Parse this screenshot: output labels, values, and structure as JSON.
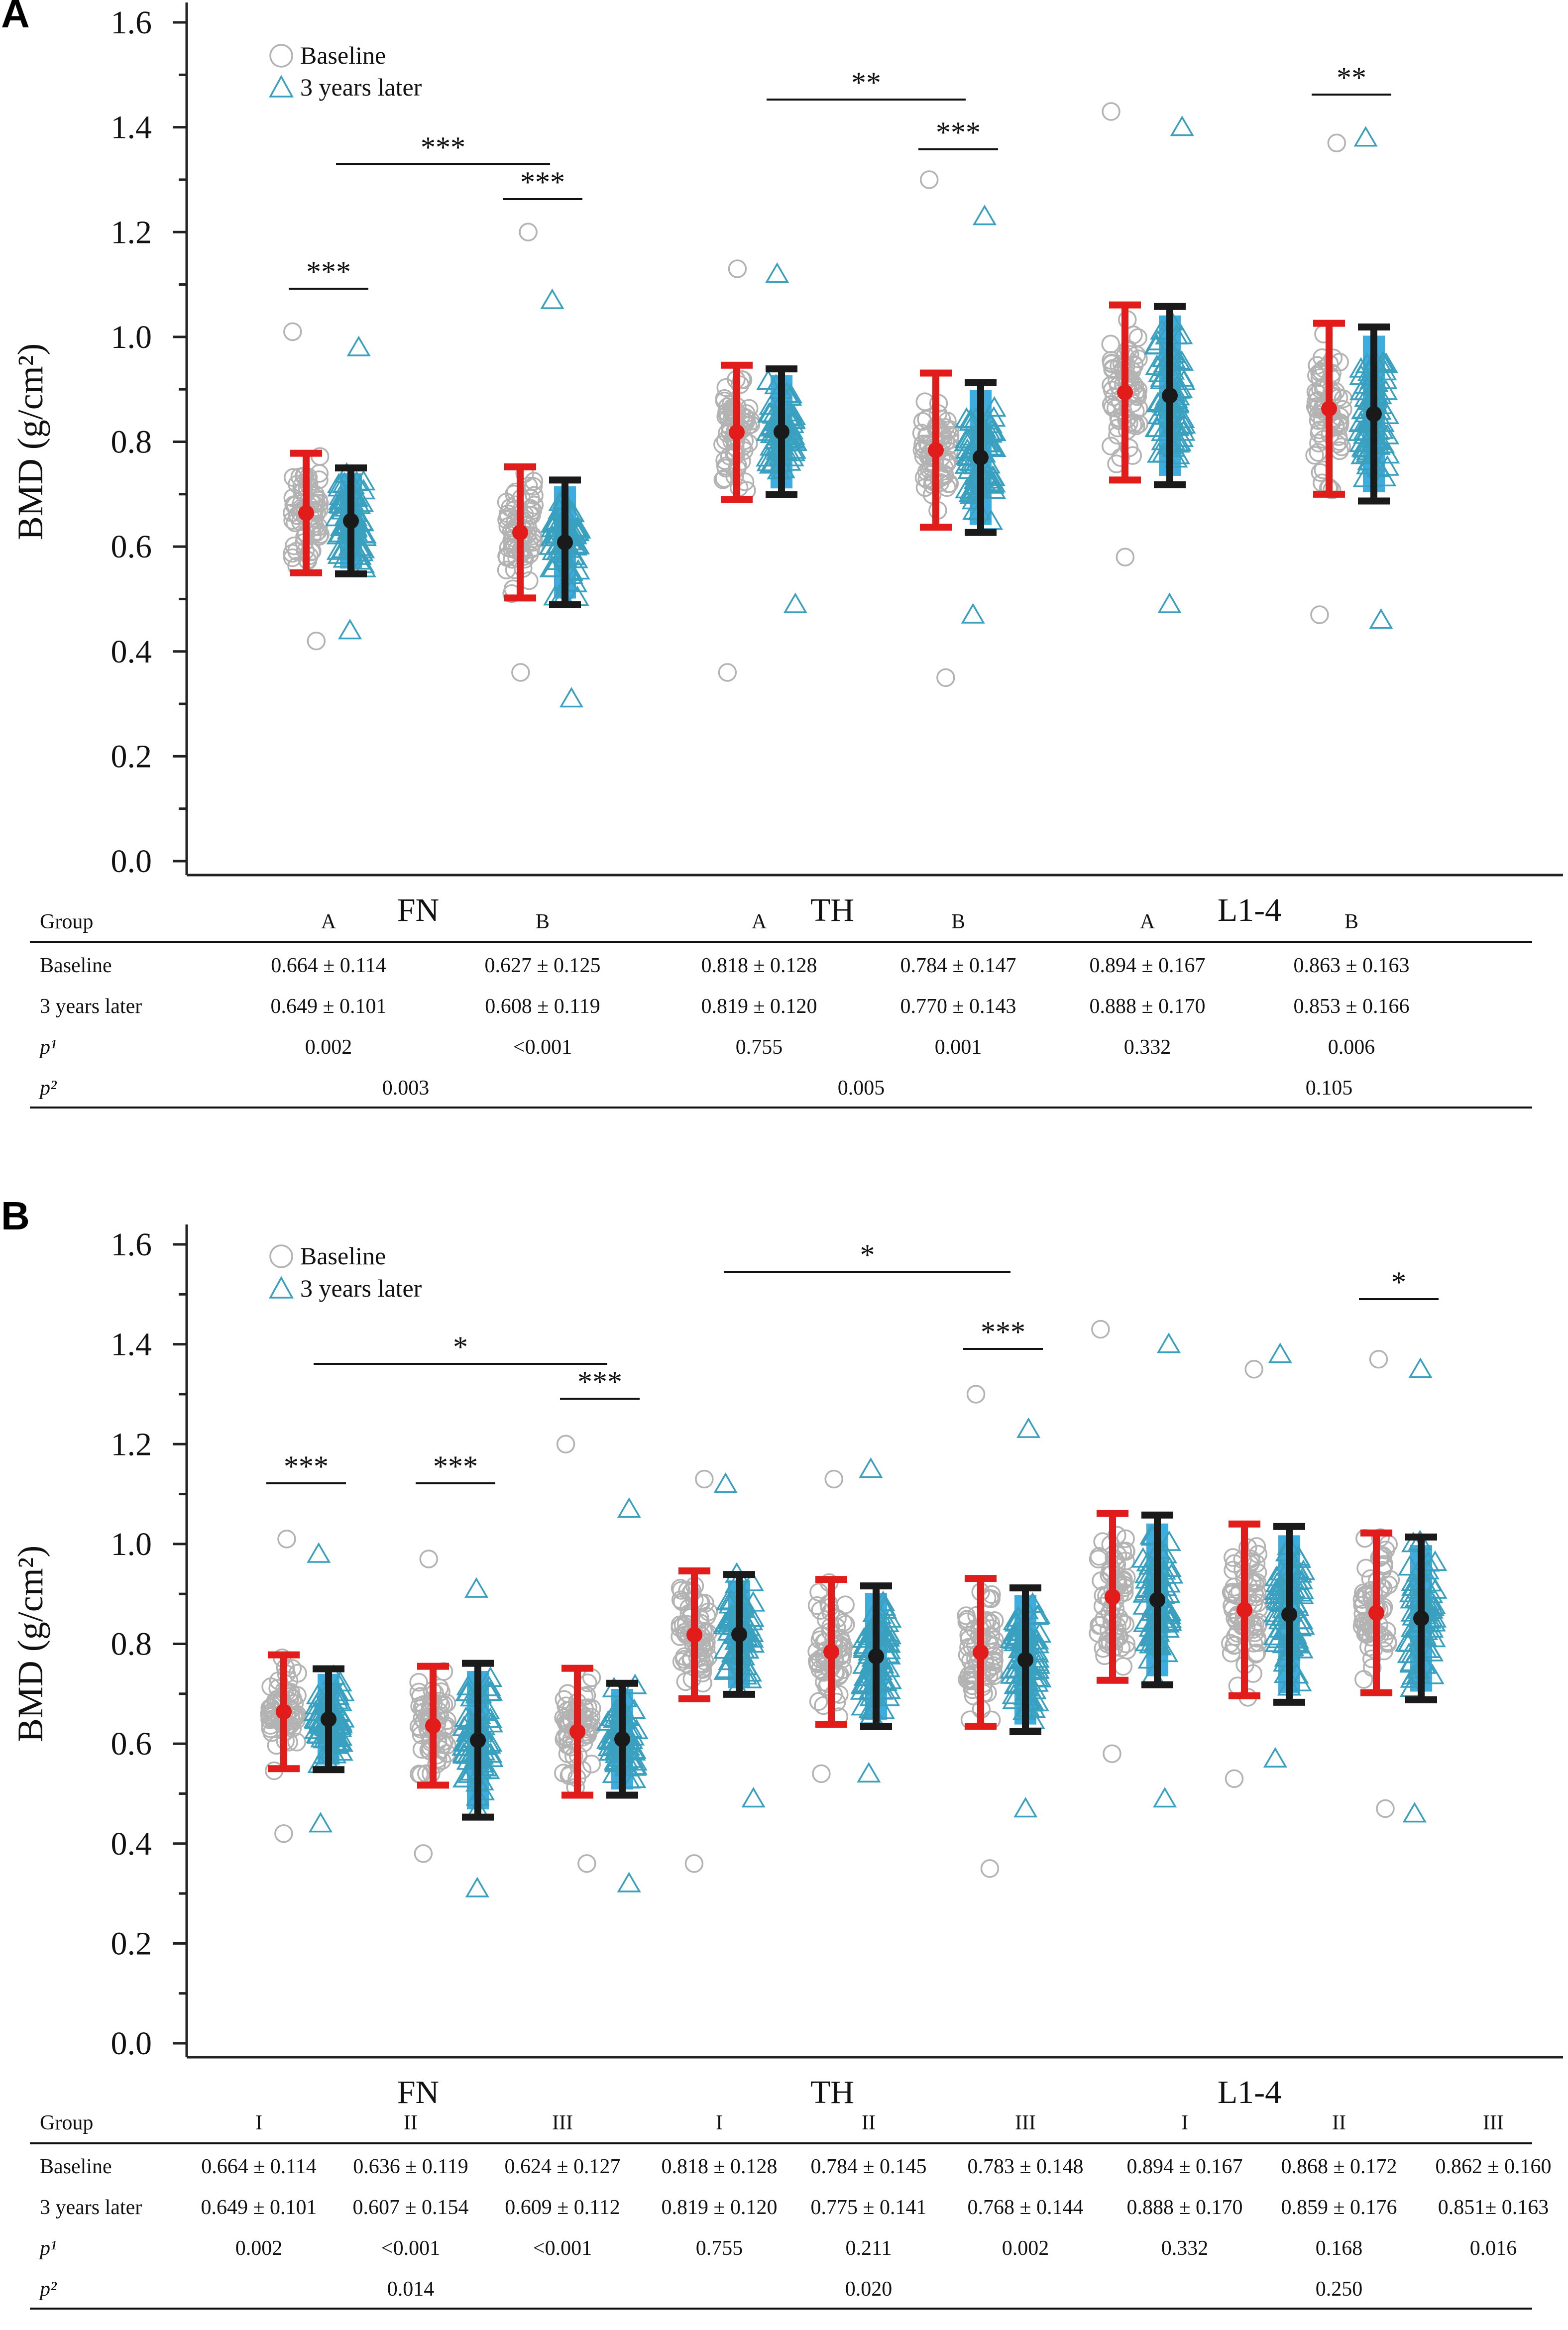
{
  "chart_data": [
    {
      "id": "A",
      "panel_label": "A",
      "type": "scatter",
      "ylabel": "BMD (g/cm²)",
      "ylim": [
        0,
        1.6
      ],
      "yticks": [
        0.0,
        0.2,
        0.4,
        0.6,
        0.8,
        1.0,
        1.2,
        1.4,
        1.6
      ],
      "ytick_labels": [
        "0.0",
        "0.2",
        "0.4",
        "0.6",
        "0.8",
        "1.0",
        "1.2",
        "1.4",
        "1.6"
      ],
      "categories": [
        "FN",
        "TH",
        "L1-4"
      ],
      "legend": [
        {
          "name": "Baseline",
          "marker": "circle",
          "color": "#b3b3b3"
        },
        {
          "name": "3 years later",
          "marker": "triangle",
          "color": "#3aa0c0"
        }
      ],
      "legend_position": "top-left",
      "groups": [
        {
          "category": "FN",
          "group": "A",
          "baseline": {
            "mean": 0.664,
            "sd": 0.114,
            "min": 0.42,
            "max": 1.01
          },
          "later": {
            "mean": 0.649,
            "sd": 0.101,
            "min": 0.44,
            "max": 0.98
          },
          "sig": "***"
        },
        {
          "category": "FN",
          "group": "B",
          "baseline": {
            "mean": 0.627,
            "sd": 0.125,
            "min": 0.36,
            "max": 1.2
          },
          "later": {
            "mean": 0.608,
            "sd": 0.119,
            "min": 0.31,
            "max": 1.07
          },
          "sig": "***"
        },
        {
          "category": "TH",
          "group": "A",
          "baseline": {
            "mean": 0.818,
            "sd": 0.128,
            "min": 0.36,
            "max": 1.13
          },
          "later": {
            "mean": 0.819,
            "sd": 0.12,
            "min": 0.49,
            "max": 1.12
          },
          "sig": ""
        },
        {
          "category": "TH",
          "group": "B",
          "baseline": {
            "mean": 0.784,
            "sd": 0.147,
            "min": 0.35,
            "max": 1.3
          },
          "later": {
            "mean": 0.77,
            "sd": 0.143,
            "min": 0.47,
            "max": 1.23
          },
          "sig": "***"
        },
        {
          "category": "L1-4",
          "group": "A",
          "baseline": {
            "mean": 0.894,
            "sd": 0.167,
            "min": 0.58,
            "max": 1.43
          },
          "later": {
            "mean": 0.888,
            "sd": 0.17,
            "min": 0.49,
            "max": 1.4
          },
          "sig": ""
        },
        {
          "category": "L1-4",
          "group": "B",
          "baseline": {
            "mean": 0.863,
            "sd": 0.163,
            "min": 0.47,
            "max": 1.37
          },
          "later": {
            "mean": 0.853,
            "sd": 0.166,
            "min": 0.46,
            "max": 1.38
          },
          "sig": "**"
        }
      ],
      "between_group_sig": [
        {
          "category": "FN",
          "from_group": 0,
          "to_group": 1,
          "label": "***"
        },
        {
          "category": "TH",
          "from_group": 2,
          "to_group": 3,
          "label": "**"
        }
      ],
      "table": {
        "header_label": "Group",
        "columns": [
          "A",
          "B",
          "A",
          "B",
          "A",
          "B"
        ],
        "rows": [
          {
            "label": "Baseline",
            "values": [
              "0.664 ± 0.114",
              "0.627 ± 0.125",
              "0.818 ± 0.128",
              "0.784 ± 0.147",
              "0.894 ± 0.167",
              "0.863 ± 0.163"
            ]
          },
          {
            "label": "3 years later",
            "values": [
              "0.649 ± 0.101",
              "0.608 ± 0.119",
              "0.819 ± 0.120",
              "0.770 ± 0.143",
              "0.888 ± 0.170",
              "0.853 ± 0.166"
            ]
          },
          {
            "label": "p¹",
            "values": [
              "0.002",
              "<0.001",
              "0.755",
              "0.001",
              "0.332",
              "0.006"
            ]
          }
        ],
        "p2": {
          "label": "p²",
          "values": [
            "0.003",
            "0.005",
            "0.105"
          ]
        }
      }
    },
    {
      "id": "B",
      "panel_label": "B",
      "type": "scatter",
      "ylabel": "BMD (g/cm²)",
      "ylim": [
        0,
        1.6
      ],
      "yticks": [
        0.0,
        0.2,
        0.4,
        0.6,
        0.8,
        1.0,
        1.2,
        1.4,
        1.6
      ],
      "ytick_labels": [
        "0.0",
        "0.2",
        "0.4",
        "0.6",
        "0.8",
        "1.0",
        "1.2",
        "1.4",
        "1.6"
      ],
      "categories": [
        "FN",
        "TH",
        "L1-4"
      ],
      "legend": [
        {
          "name": "Baseline",
          "marker": "circle",
          "color": "#b3b3b3"
        },
        {
          "name": "3 years later",
          "marker": "triangle",
          "color": "#3aa0c0"
        }
      ],
      "legend_position": "top-left",
      "groups": [
        {
          "category": "FN",
          "group": "I",
          "baseline": {
            "mean": 0.664,
            "sd": 0.114,
            "min": 0.42,
            "max": 1.01
          },
          "later": {
            "mean": 0.649,
            "sd": 0.101,
            "min": 0.44,
            "max": 0.98
          },
          "sig": "***"
        },
        {
          "category": "FN",
          "group": "II",
          "baseline": {
            "mean": 0.636,
            "sd": 0.119,
            "min": 0.38,
            "max": 0.97
          },
          "later": {
            "mean": 0.607,
            "sd": 0.154,
            "min": 0.31,
            "max": 0.91
          },
          "sig": "***"
        },
        {
          "category": "FN",
          "group": "III",
          "baseline": {
            "mean": 0.624,
            "sd": 0.127,
            "min": 0.36,
            "max": 1.2
          },
          "later": {
            "mean": 0.609,
            "sd": 0.112,
            "min": 0.32,
            "max": 1.07
          },
          "sig": "***"
        },
        {
          "category": "TH",
          "group": "I",
          "baseline": {
            "mean": 0.818,
            "sd": 0.128,
            "min": 0.36,
            "max": 1.13
          },
          "later": {
            "mean": 0.819,
            "sd": 0.12,
            "min": 0.49,
            "max": 1.12
          },
          "sig": ""
        },
        {
          "category": "TH",
          "group": "II",
          "baseline": {
            "mean": 0.784,
            "sd": 0.145,
            "min": 0.54,
            "max": 1.13
          },
          "later": {
            "mean": 0.775,
            "sd": 0.141,
            "min": 0.54,
            "max": 1.15
          },
          "sig": ""
        },
        {
          "category": "TH",
          "group": "III",
          "baseline": {
            "mean": 0.783,
            "sd": 0.148,
            "min": 0.35,
            "max": 1.3
          },
          "later": {
            "mean": 0.768,
            "sd": 0.144,
            "min": 0.47,
            "max": 1.23
          },
          "sig": "***"
        },
        {
          "category": "L1-4",
          "group": "I",
          "baseline": {
            "mean": 0.894,
            "sd": 0.167,
            "min": 0.58,
            "max": 1.43
          },
          "later": {
            "mean": 0.888,
            "sd": 0.17,
            "min": 0.49,
            "max": 1.4
          },
          "sig": ""
        },
        {
          "category": "L1-4",
          "group": "II",
          "baseline": {
            "mean": 0.868,
            "sd": 0.172,
            "min": 0.53,
            "max": 1.35
          },
          "later": {
            "mean": 0.859,
            "sd": 0.176,
            "min": 0.57,
            "max": 1.38
          },
          "sig": ""
        },
        {
          "category": "L1-4",
          "group": "III",
          "baseline": {
            "mean": 0.862,
            "sd": 0.16,
            "min": 0.47,
            "max": 1.37
          },
          "later": {
            "mean": 0.851,
            "sd": 0.163,
            "min": 0.46,
            "max": 1.35
          },
          "sig": "*"
        }
      ],
      "between_group_sig": [
        {
          "category": "FN",
          "from_group": 0,
          "to_group": 2,
          "label": "*"
        },
        {
          "category": "TH",
          "from_group": 3,
          "to_group": 5,
          "label": "*"
        }
      ],
      "table": {
        "header_label": "Group",
        "columns": [
          "I",
          "II",
          "III",
          "I",
          "II",
          "III",
          "I",
          "II",
          "III"
        ],
        "rows": [
          {
            "label": "Baseline",
            "values": [
              "0.664 ± 0.114",
              "0.636 ± 0.119",
              "0.624 ± 0.127",
              "0.818 ± 0.128",
              "0.784 ± 0.145",
              "0.783 ± 0.148",
              "0.894 ± 0.167",
              "0.868 ± 0.172",
              "0.862 ± 0.160"
            ]
          },
          {
            "label": "3 years later",
            "values": [
              "0.649 ± 0.101",
              "0.607 ± 0.154",
              "0.609 ± 0.112",
              "0.819 ± 0.120",
              "0.775 ± 0.141",
              "0.768 ± 0.144",
              "0.888 ± 0.170",
              "0.859 ± 0.176",
              "0.851± 0.163"
            ]
          },
          {
            "label": "p¹",
            "values": [
              "0.002",
              "<0.001",
              "<0.001",
              "0.755",
              "0.211",
              "0.002",
              "0.332",
              "0.168",
              "0.016"
            ]
          }
        ],
        "p2": {
          "label": "p²",
          "values": [
            "0.014",
            "0.020",
            "0.250"
          ]
        }
      }
    }
  ]
}
